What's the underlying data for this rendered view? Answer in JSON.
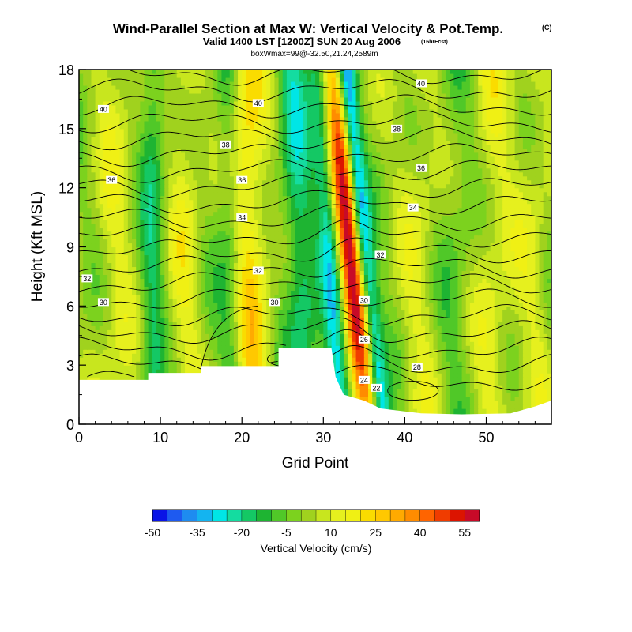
{
  "chart_data": {
    "type": "heatmap",
    "title": "Wind-Parallel Section at Max W: Vertical Velocity & Pot.Temp.",
    "title_mark": "(C)",
    "subtitle": "Valid 1400 LST [1200Z] SUN 20 Aug 2006",
    "subtitle_note": "(16hrFcst)",
    "subtitle2": "boxWmax=99@-32.50,21.24,2589m",
    "xlabel": "Grid Point",
    "ylabel": "Height (Kft MSL)",
    "xlim": [
      0,
      58
    ],
    "ylim": [
      0,
      18
    ],
    "xticks": [
      0,
      10,
      20,
      30,
      40,
      50
    ],
    "yticks": [
      0,
      3,
      6,
      9,
      12,
      15,
      18
    ],
    "colorbar": {
      "label": "Vertical Velocity (cm/s)",
      "min": -50,
      "max": 60,
      "step": 5,
      "tick_values": [
        -50,
        -35,
        -20,
        -5,
        10,
        25,
        40,
        55
      ],
      "tick_labels": [
        "-50",
        "-35",
        "-20",
        "-5",
        "10",
        "25",
        "40",
        "55"
      ],
      "colors": [
        "#0a14e6",
        "#1e5af0",
        "#1e8cf0",
        "#14b4f0",
        "#00e6e6",
        "#14dca0",
        "#14c864",
        "#1eb432",
        "#50c828",
        "#7cd21e",
        "#a0d21e",
        "#c8e61e",
        "#e6f01e",
        "#f0f014",
        "#fadc00",
        "#ffc800",
        "#ffaa00",
        "#ff8c00",
        "#ff6400",
        "#f03c00",
        "#dc1400",
        "#c80a28"
      ]
    },
    "terrain": [
      [
        0,
        2.25
      ],
      [
        8.5,
        2.25
      ],
      [
        8.5,
        2.6
      ],
      [
        15,
        2.6
      ],
      [
        15,
        2.95
      ],
      [
        24.5,
        2.95
      ],
      [
        24.5,
        3.85
      ],
      [
        31,
        3.85
      ],
      [
        31.5,
        2.4
      ],
      [
        32.5,
        1.5
      ],
      [
        35,
        1.2
      ],
      [
        37,
        0.8
      ],
      [
        42,
        0.55
      ],
      [
        47,
        0.5
      ],
      [
        53,
        0.55
      ],
      [
        56,
        0.9
      ],
      [
        58,
        1.2
      ]
    ],
    "w_features": [
      {
        "x": 33.2,
        "sigma": 1.1,
        "amp": 60,
        "tilt": -0.25
      },
      {
        "x": 35.0,
        "sigma": 0.8,
        "amp": -35,
        "tilt": -0.25
      },
      {
        "x": 30.8,
        "sigma": 0.9,
        "amp": -25,
        "tilt": -0.15
      },
      {
        "x": 21.0,
        "sigma": 1.6,
        "amp": 22,
        "tilt": -0.05
      },
      {
        "x": 18.5,
        "sigma": 1.0,
        "amp": -12,
        "tilt": -0.05
      },
      {
        "x": 27.0,
        "sigma": 1.3,
        "amp": -20,
        "tilt": -0.1
      },
      {
        "x": 9.0,
        "sigma": 1.1,
        "amp": -15,
        "tilt": 0.02
      },
      {
        "x": 13.0,
        "sigma": 1.5,
        "amp": 12,
        "tilt": 0.02
      },
      {
        "x": 4.5,
        "sigma": 1.8,
        "amp": 10,
        "tilt": 0.0
      },
      {
        "x": 42.0,
        "sigma": 2.0,
        "amp": 10,
        "tilt": 0.0
      },
      {
        "x": 50.5,
        "sigma": 2.2,
        "amp": 12,
        "tilt": 0.0
      },
      {
        "x": 46.5,
        "sigma": 2.2,
        "amp": -8,
        "tilt": 0.0
      },
      {
        "x": 56.0,
        "sigma": 1.5,
        "amp": 8,
        "tilt": 0.0
      }
    ],
    "w_background": 0,
    "theta_contours": [
      {
        "label": "22",
        "label_at": [
          36.5,
          1.85
        ]
      },
      {
        "label": "24",
        "label_at": [
          35.0,
          2.25
        ]
      },
      {
        "label": "26",
        "label_at": [
          35.0,
          4.3
        ]
      },
      {
        "label": "28",
        "label_at": [
          41.5,
          2.9
        ]
      },
      {
        "label": "30",
        "label_at": [
          24.0,
          6.2
        ]
      },
      {
        "label": "30",
        "label_at": [
          35.0,
          6.3
        ]
      },
      {
        "label": "30",
        "label_at": [
          3.0,
          6.2
        ]
      },
      {
        "label": "32",
        "label_at": [
          1.0,
          7.4
        ]
      },
      {
        "label": "32",
        "label_at": [
          22.0,
          7.8
        ]
      },
      {
        "label": "32",
        "label_at": [
          37.0,
          8.6
        ]
      },
      {
        "label": "34",
        "label_at": [
          20.0,
          10.5
        ]
      },
      {
        "label": "34",
        "label_at": [
          41.0,
          11.0
        ]
      },
      {
        "label": "36",
        "label_at": [
          4.0,
          12.4
        ]
      },
      {
        "label": "36",
        "label_at": [
          20.0,
          12.4
        ]
      },
      {
        "label": "36",
        "label_at": [
          42.0,
          13.0
        ]
      },
      {
        "label": "38",
        "label_at": [
          18.0,
          14.2
        ]
      },
      {
        "label": "38",
        "label_at": [
          39.0,
          15.0
        ]
      },
      {
        "label": "40",
        "label_at": [
          3.0,
          16.0
        ]
      },
      {
        "label": "40",
        "label_at": [
          22.0,
          16.3
        ]
      },
      {
        "label": "40",
        "label_at": [
          42.0,
          17.3
        ]
      }
    ]
  }
}
